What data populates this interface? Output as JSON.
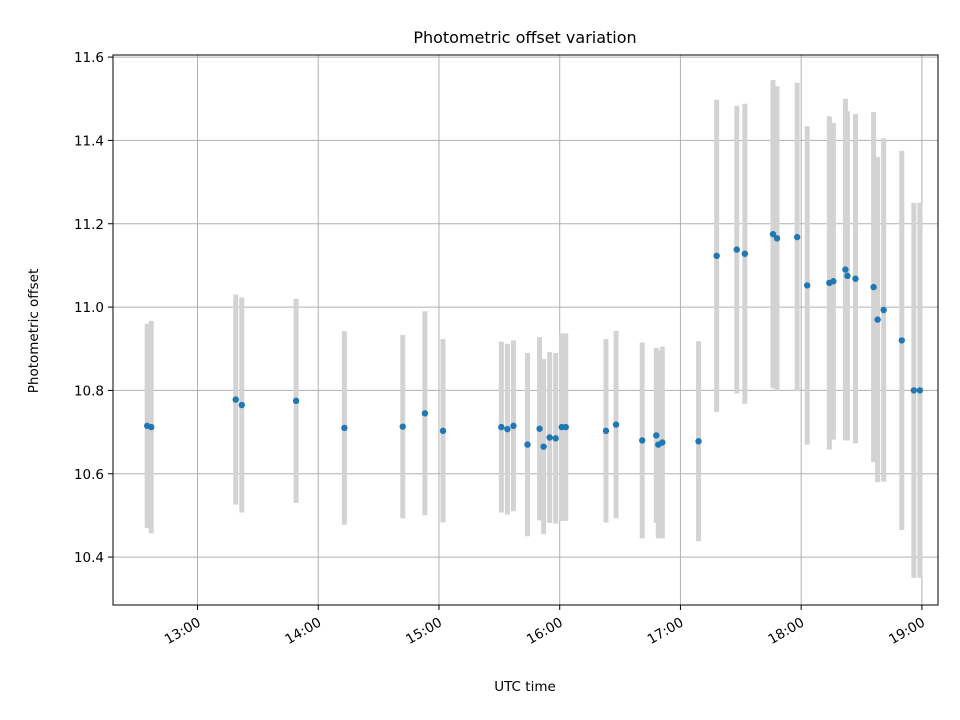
{
  "chart_data": {
    "type": "scatter",
    "title": "Photometric offset variation",
    "xlabel": "UTC time",
    "ylabel": "Photometric offset",
    "x_is_time": true,
    "xlim": [
      "12:18",
      "19:08"
    ],
    "ylim": [
      10.285,
      11.605
    ],
    "x_ticks": [
      "13:00",
      "14:00",
      "15:00",
      "16:00",
      "17:00",
      "18:00",
      "19:00"
    ],
    "y_ticks": [
      "10.4",
      "10.6",
      "10.8",
      "11.0",
      "11.2",
      "11.4",
      "11.6"
    ],
    "grid": true,
    "colors": {
      "point": "#1f77b4",
      "errorbar": "#d3d3d3",
      "grid": "#b0b0b0",
      "axis": "#000000"
    },
    "series": [
      {
        "x": [
          "12:35",
          "12:37",
          "13:19",
          "13:22",
          "13:49",
          "14:13",
          "14:42",
          "14:53",
          "15:02",
          "15:31",
          "15:34",
          "15:37",
          "15:44",
          "15:50",
          "15:52",
          "15:55",
          "15:58",
          "16:01",
          "16:03",
          "16:23",
          "16:28",
          "16:41",
          "16:48",
          "16:49",
          "16:51",
          "17:09",
          "17:18",
          "17:28",
          "17:32",
          "17:46",
          "17:48",
          "17:58",
          "18:03",
          "18:14",
          "18:16",
          "18:22",
          "18:23",
          "18:27",
          "18:36",
          "18:38",
          "18:41",
          "18:50",
          "18:56",
          "18:59"
        ],
        "y": [
          10.715,
          10.712,
          10.778,
          10.765,
          10.775,
          10.71,
          10.713,
          10.745,
          10.703,
          10.712,
          10.707,
          10.715,
          10.67,
          10.708,
          10.665,
          10.687,
          10.685,
          10.712,
          10.712,
          10.703,
          10.718,
          10.68,
          10.692,
          10.67,
          10.675,
          10.678,
          11.123,
          11.138,
          11.128,
          11.175,
          11.165,
          11.168,
          11.052,
          11.058,
          11.062,
          11.09,
          11.075,
          11.068,
          11.048,
          10.97,
          10.993,
          10.92,
          10.8,
          10.8
        ],
        "yerr": [
          0.245,
          0.255,
          0.252,
          0.258,
          0.245,
          0.232,
          0.22,
          0.245,
          0.22,
          0.205,
          0.205,
          0.205,
          0.22,
          0.22,
          0.21,
          0.205,
          0.205,
          0.225,
          0.225,
          0.22,
          0.225,
          0.235,
          0.21,
          0.225,
          0.23,
          0.24,
          0.375,
          0.345,
          0.36,
          0.37,
          0.365,
          0.37,
          0.382,
          0.4,
          0.38,
          0.41,
          0.395,
          0.395,
          0.42,
          0.39,
          0.412,
          0.455,
          0.45,
          0.45
        ]
      }
    ]
  }
}
